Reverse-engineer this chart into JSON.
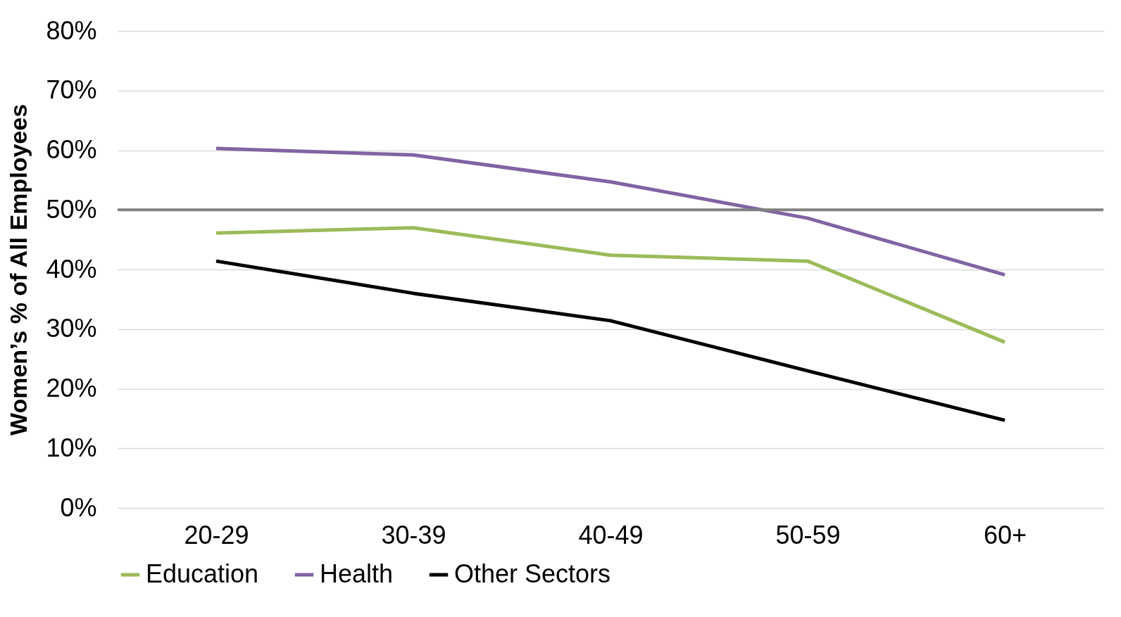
{
  "chart_data": {
    "type": "line",
    "ylabel": "Women’s % of All Employees",
    "categories": [
      "20-29",
      "30-39",
      "40-49",
      "50-59",
      "60+"
    ],
    "series": [
      {
        "name": "Education",
        "color": "#9bbb59",
        "values": [
          46.1,
          47.0,
          42.4,
          41.4,
          27.8
        ]
      },
      {
        "name": "Health",
        "color": "#8064a2",
        "values": [
          60.3,
          59.2,
          54.7,
          48.6,
          39.1
        ]
      },
      {
        "name": "Other Sectors",
        "color": "#000000",
        "values": [
          41.4,
          36.0,
          31.4,
          23.0,
          14.7
        ]
      }
    ],
    "ylim": [
      0,
      80
    ],
    "yticks": [
      {
        "value": 0,
        "label": "0%"
      },
      {
        "value": 10,
        "label": "10%"
      },
      {
        "value": 20,
        "label": "20%"
      },
      {
        "value": 30,
        "label": "30%"
      },
      {
        "value": 40,
        "label": "40%"
      },
      {
        "value": 50,
        "label": "50%"
      },
      {
        "value": 60,
        "label": "60%"
      },
      {
        "value": 70,
        "label": "70%"
      },
      {
        "value": 80,
        "label": "80%"
      }
    ],
    "ref_lines": [
      {
        "axis": "y",
        "value": 50,
        "color": "#808080"
      }
    ],
    "grid": "y",
    "legend": "bottom",
    "marker": "none",
    "line_style": "solid"
  }
}
